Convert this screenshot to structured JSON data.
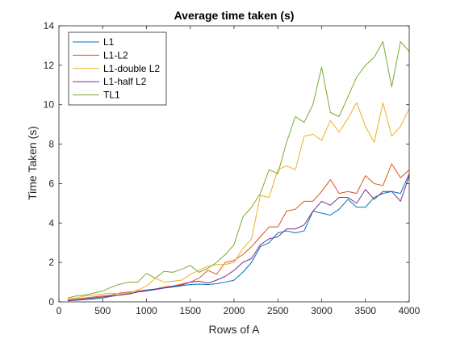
{
  "chart_data": {
    "type": "line",
    "title": "Average time taken (s)",
    "xlabel": "Rows of A",
    "ylabel": "Time Taken (s)",
    "xlim": [
      0,
      4000
    ],
    "ylim": [
      0,
      14
    ],
    "xticks": [
      0,
      500,
      1000,
      1500,
      2000,
      2500,
      3000,
      3500,
      4000
    ],
    "yticks": [
      0,
      2,
      4,
      6,
      8,
      10,
      12,
      14
    ],
    "grid": false,
    "legend_position": "top-left",
    "x": [
      100,
      200,
      300,
      400,
      500,
      600,
      700,
      800,
      900,
      1000,
      1100,
      1200,
      1300,
      1400,
      1500,
      1600,
      1700,
      1800,
      1900,
      2000,
      2100,
      2200,
      2300,
      2400,
      2500,
      2600,
      2700,
      2800,
      2900,
      3000,
      3100,
      3200,
      3300,
      3400,
      3500,
      3600,
      3700,
      3800,
      3900,
      4000
    ],
    "series": [
      {
        "name": "L1",
        "color": "#0072BD",
        "values": [
          0.05,
          0.08,
          0.12,
          0.15,
          0.2,
          0.28,
          0.35,
          0.42,
          0.5,
          0.55,
          0.62,
          0.7,
          0.75,
          0.82,
          0.88,
          0.9,
          0.88,
          0.92,
          1.0,
          1.1,
          1.5,
          2.0,
          2.8,
          3.0,
          3.5,
          3.6,
          3.5,
          3.6,
          4.6,
          4.5,
          4.4,
          4.7,
          5.2,
          4.8,
          4.8,
          5.3,
          5.5,
          5.6,
          5.5,
          6.5
        ]
      },
      {
        "name": "L1-L2",
        "color": "#D95319",
        "values": [
          0.1,
          0.15,
          0.2,
          0.25,
          0.3,
          0.35,
          0.45,
          0.5,
          0.55,
          0.6,
          0.65,
          0.75,
          0.8,
          0.9,
          1.0,
          1.2,
          1.6,
          1.4,
          2.0,
          2.1,
          2.4,
          2.8,
          3.3,
          3.8,
          3.8,
          4.6,
          4.7,
          5.1,
          5.1,
          5.6,
          6.2,
          5.5,
          5.6,
          5.5,
          6.4,
          6.0,
          5.9,
          7.0,
          6.3,
          6.7
        ]
      },
      {
        "name": "L1-double L2",
        "color": "#EDB120",
        "values": [
          0.15,
          0.2,
          0.3,
          0.35,
          0.4,
          0.45,
          0.4,
          0.45,
          0.6,
          0.8,
          1.2,
          1.0,
          1.05,
          1.1,
          1.4,
          1.6,
          1.8,
          1.9,
          1.9,
          2.0,
          2.7,
          3.2,
          5.4,
          5.3,
          6.7,
          6.9,
          6.7,
          8.4,
          8.5,
          8.2,
          9.2,
          8.6,
          9.3,
          10.1,
          8.9,
          8.1,
          10.1,
          8.4,
          8.9,
          9.8
        ]
      },
      {
        "name": "L1-half L2",
        "color": "#7E2F8E",
        "values": [
          0.05,
          0.1,
          0.15,
          0.2,
          0.25,
          0.3,
          0.35,
          0.4,
          0.5,
          0.6,
          0.65,
          0.7,
          0.8,
          0.85,
          1.0,
          1.05,
          0.95,
          1.1,
          1.3,
          1.6,
          2.0,
          2.2,
          2.9,
          3.2,
          3.3,
          3.7,
          3.7,
          3.9,
          4.6,
          5.1,
          4.9,
          5.3,
          5.3,
          5.0,
          5.7,
          5.2,
          5.6,
          5.6,
          5.1,
          6.4
        ]
      },
      {
        "name": "TL1",
        "color": "#77AC30",
        "values": [
          0.2,
          0.3,
          0.35,
          0.45,
          0.55,
          0.75,
          0.9,
          1.0,
          1.0,
          1.45,
          1.2,
          1.55,
          1.5,
          1.65,
          1.85,
          1.5,
          1.7,
          2.0,
          2.4,
          2.9,
          4.3,
          4.8,
          5.5,
          6.7,
          6.5,
          8.1,
          9.4,
          9.1,
          10.0,
          11.9,
          9.6,
          9.4,
          10.4,
          11.4,
          12.0,
          12.4,
          13.2,
          10.9,
          13.2,
          12.7
        ]
      }
    ]
  }
}
